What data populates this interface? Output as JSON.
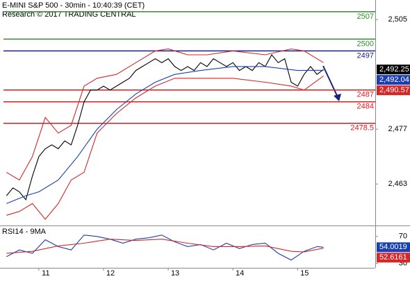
{
  "chart_data": [
    {
      "type": "price",
      "title": "E-MINI S&P 500 - 30min - 10:40:39 (CET)",
      "subtitle": "Research © 2017 TRADING CENTRAL",
      "xlim": [
        10.4,
        16.2
      ],
      "xticks": [
        11,
        12,
        13,
        14,
        15
      ],
      "ylim": [
        2452.4,
        2510
      ],
      "yticks": [
        {
          "value": 2505,
          "label": "2,505"
        },
        {
          "value": 2477,
          "label": "2,477"
        },
        {
          "value": 2463,
          "label": "2,463"
        }
      ],
      "levels": [
        {
          "value": 2507,
          "color": "#2e8b2e"
        },
        {
          "value": 2500,
          "color": "#2e8b2e"
        },
        {
          "value": 2497,
          "color": "#1a237e"
        },
        {
          "value": 2487,
          "color": "#e31a1c"
        },
        {
          "value": 2484,
          "color": "#e31a1c"
        },
        {
          "value": 2478.5,
          "color": "#e31a1c"
        }
      ],
      "series": [
        {
          "name": "price",
          "color": "#000000",
          "x": [
            10.5,
            10.6,
            10.7,
            10.8,
            10.9,
            11.0,
            11.1,
            11.2,
            11.3,
            11.4,
            11.5,
            11.6,
            11.7,
            11.8,
            11.9,
            12.0,
            12.1,
            12.2,
            12.3,
            12.4,
            12.5,
            12.6,
            12.7,
            12.8,
            12.9,
            13.0,
            13.1,
            13.2,
            13.3,
            13.4,
            13.5,
            13.6,
            13.7,
            13.8,
            13.9,
            14.0,
            14.1,
            14.2,
            14.3,
            14.4,
            14.5,
            14.6,
            14.7,
            14.8,
            14.9,
            15.0,
            15.1,
            15.2,
            15.3,
            15.4
          ],
          "values": [
            2460,
            2462,
            2461,
            2459,
            2465,
            2470,
            2472,
            2473,
            2472,
            2474,
            2473,
            2478,
            2484,
            2487,
            2487,
            2488,
            2487,
            2488,
            2489,
            2490,
            2492,
            2493,
            2494,
            2495,
            2494,
            2495,
            2493,
            2492,
            2493,
            2492,
            2494,
            2493,
            2495,
            2494,
            2493,
            2494,
            2492,
            2493,
            2492,
            2494,
            2493,
            2496,
            2494,
            2495,
            2489,
            2488,
            2491,
            2493,
            2491,
            2492.25
          ],
          "tag": {
            "value": 2492.25,
            "label": "2,492.25"
          }
        },
        {
          "name": "average",
          "color": "#1a3fb0",
          "x": [
            10.5,
            10.8,
            11.0,
            11.3,
            11.6,
            11.9,
            12.2,
            12.5,
            12.8,
            13.1,
            13.5,
            14.0,
            14.5,
            15.0,
            15.4
          ],
          "values": [
            2458,
            2460,
            2461,
            2464,
            2470,
            2477,
            2482,
            2486,
            2489,
            2491,
            2492,
            2493,
            2493,
            2492,
            2492.04
          ],
          "tag": {
            "value": 2492.04,
            "label": "2,492.04"
          }
        },
        {
          "name": "upper band",
          "color": "#d62728",
          "x": [
            10.5,
            10.7,
            10.9,
            11.1,
            11.3,
            11.5,
            11.7,
            11.9,
            12.2,
            12.5,
            12.8,
            13.0,
            13.3,
            13.6,
            14.0,
            14.5,
            14.9,
            15.1,
            15.4
          ],
          "values": [
            2466,
            2464,
            2470,
            2480,
            2476,
            2478,
            2488,
            2490,
            2491,
            2494,
            2497,
            2497.5,
            2496,
            2496,
            2497,
            2496,
            2497.5,
            2497,
            2494
          ]
        },
        {
          "name": "lower band",
          "color": "#d62728",
          "x": [
            10.5,
            10.7,
            10.9,
            11.1,
            11.3,
            11.5,
            11.7,
            11.9,
            12.2,
            12.5,
            12.8,
            13.1,
            13.5,
            14.0,
            14.5,
            14.9,
            15.1,
            15.4
          ],
          "values": [
            2455,
            2456,
            2458,
            2454,
            2458,
            2464,
            2466,
            2476,
            2481,
            2485,
            2488,
            2490,
            2490,
            2490,
            2489,
            2488,
            2487,
            2490.57
          ],
          "tag": {
            "value": 2490.57,
            "label": "2,490.57"
          }
        }
      ]
    },
    {
      "type": "oscillator",
      "title": "RSI14 - 9MA",
      "xlim": [
        10.4,
        16.2
      ],
      "ylim": [
        23.5,
        86.2
      ],
      "yticks": [
        30,
        70
      ],
      "series": [
        {
          "name": "RSI",
          "color": "#1a3fb0",
          "x": [
            10.5,
            10.7,
            10.9,
            11.1,
            11.3,
            11.5,
            11.7,
            11.9,
            12.1,
            12.3,
            12.5,
            12.7,
            12.9,
            13.1,
            13.3,
            13.5,
            13.7,
            13.9,
            14.1,
            14.3,
            14.5,
            14.7,
            14.9,
            15.1,
            15.3,
            15.4
          ],
          "values": [
            40,
            50,
            45,
            65,
            55,
            50,
            72,
            70,
            66,
            60,
            66,
            68,
            72,
            62,
            55,
            58,
            50,
            60,
            52,
            58,
            60,
            45,
            35,
            48,
            55,
            54.0019
          ],
          "tag": {
            "value": 54.0019,
            "label": "54.0019"
          }
        },
        {
          "name": "MA",
          "color": "#d62728",
          "x": [
            10.5,
            10.9,
            11.3,
            11.7,
            12.1,
            12.5,
            12.9,
            13.3,
            13.7,
            14.1,
            14.5,
            14.9,
            15.1,
            15.4
          ],
          "values": [
            45,
            48,
            56,
            60,
            66,
            64,
            66,
            60,
            55,
            55,
            56,
            48,
            47,
            52.6161
          ],
          "tag": {
            "value": 52.6161,
            "label": "52.6161"
          }
        }
      ]
    }
  ]
}
